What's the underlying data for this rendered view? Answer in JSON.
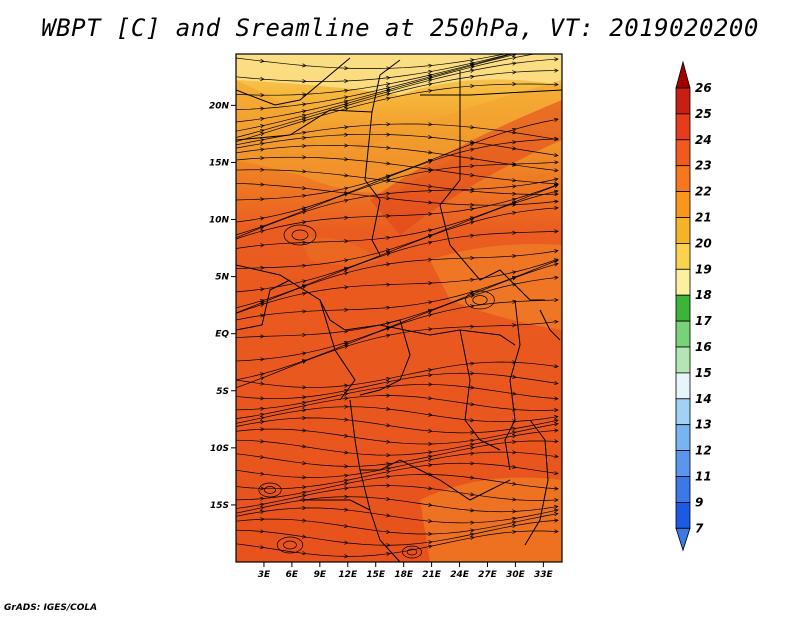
{
  "title": "WBPT [C] and Sreamline at 250hPa, VT: 2019020200",
  "credit": "GrADS: IGES/COLA",
  "map": {
    "lat_labels": [
      "20N",
      "15N",
      "10N",
      "5N",
      "EQ",
      "5S",
      "10S",
      "15S"
    ],
    "lat_values": [
      20,
      15,
      10,
      5,
      0,
      -5,
      -10,
      -15
    ],
    "lon_labels": [
      "3E",
      "6E",
      "9E",
      "12E",
      "15E",
      "18E",
      "21E",
      "24E",
      "27E",
      "30E",
      "33E"
    ],
    "lon_values": [
      3,
      6,
      9,
      12,
      15,
      18,
      21,
      24,
      27,
      30,
      33
    ],
    "lon_range": [
      0,
      35
    ],
    "lat_range": [
      -20,
      24.5
    ]
  },
  "colorbar": {
    "labels": [
      "26",
      "25",
      "24",
      "23",
      "22",
      "21",
      "20",
      "19",
      "18",
      "17",
      "16",
      "15",
      "14",
      "13",
      "12",
      "11",
      "9",
      "7"
    ],
    "colors": [
      "#a00000",
      "#c81e14",
      "#e63c1e",
      "#f05a1e",
      "#f5781e",
      "#fa961e",
      "#f5b428",
      "#fad250",
      "#faf0a0",
      "#3cb43c",
      "#78d278",
      "#b4e6b4",
      "#e6f5fa",
      "#a0d2f5",
      "#78b4f0",
      "#5a96eb",
      "#3c78e6",
      "#1e5ae1"
    ],
    "top_arrow_color": "#a00000",
    "bottom_arrow_color": "#3c78e6"
  }
}
